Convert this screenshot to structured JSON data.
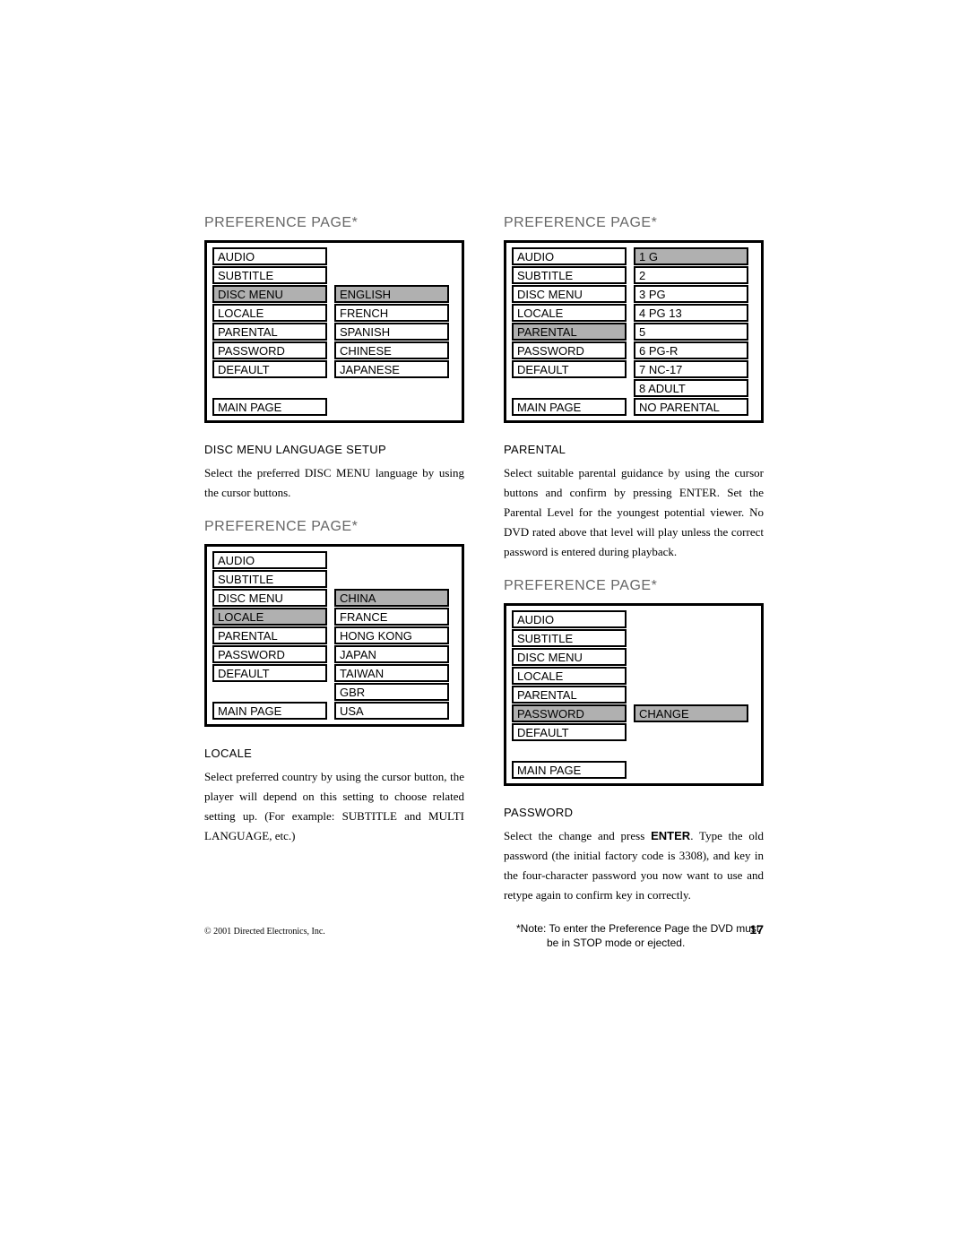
{
  "colors": {
    "text": "#000000",
    "heading_gray": "#666666",
    "border": "#000000",
    "highlight_bg": "#b0b0b0",
    "page_bg": "#ffffff"
  },
  "fonts": {
    "heading": {
      "family": "Arial",
      "size_pt": 12
    },
    "subhead": {
      "family": "Arial",
      "size_pt": 10
    },
    "body": {
      "family": "Georgia",
      "size_pt": 10
    },
    "menu_cell": {
      "family": "Arial",
      "size_pt": 10
    }
  },
  "menu": {
    "title": "PREFERENCE PAGE*",
    "left_items": [
      "AUDIO",
      "SUBTITLE",
      "DISC MENU",
      "LOCALE",
      "PARENTAL",
      "PASSWORD",
      "DEFAULT"
    ],
    "main_page": "MAIN PAGE",
    "disc_menu_options": [
      "ENGLISH",
      "FRENCH",
      "SPANISH",
      "CHINESE",
      "JAPANESE"
    ],
    "locale_options": [
      "CHINA",
      "FRANCE",
      "HONG KONG",
      "JAPAN",
      "TAIWAN",
      "GBR",
      "USA"
    ],
    "parental_options": [
      "1 G",
      "2",
      "3 PG",
      "4 PG 13",
      "5",
      "6 PG-R",
      "7 NC-17",
      "8 ADULT",
      "NO PARENTAL"
    ],
    "password_options": [
      "CHANGE"
    ]
  },
  "sections": {
    "disc_menu": {
      "subhead": "DISC MENU LANGUAGE SETUP",
      "text": "Select the preferred DISC MENU language by using the cursor buttons."
    },
    "locale": {
      "subhead": "LOCALE",
      "text": "Select preferred country by using the cursor button, the player will depend on this setting to choose related setting up. (For example: SUBTITLE and MULTI LANGUAGE, etc.)"
    },
    "parental": {
      "subhead": "PARENTAL",
      "text": "Select suitable parental guidance by using the cursor buttons and confirm by pressing ENTER. Set the Parental Level for the youngest potential viewer. No DVD rated above that level will play unless the correct password is entered during playback."
    },
    "password": {
      "subhead": "PASSWORD",
      "text_before": "Select the change and press ",
      "text_bold": "ENTER",
      "text_after": ". Type the old password (the initial factory code is 3308), and key in the four-character password you now want to use and retype again to confirm key in correctly."
    }
  },
  "note": "*Note: To enter the Preference Page the DVD must be in STOP mode or ejected.",
  "footer": {
    "copyright": "© 2001 Directed Electronics, Inc.",
    "page": "17"
  }
}
